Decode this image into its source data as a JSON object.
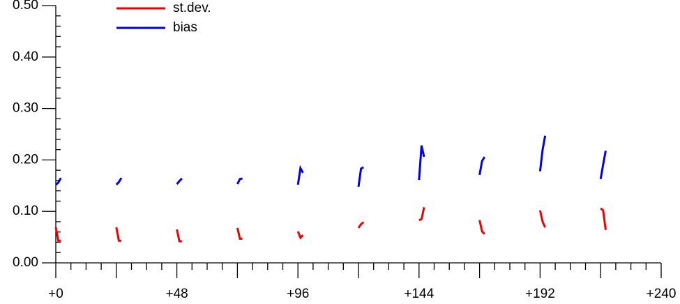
{
  "chart_data": {
    "type": "line",
    "x": [
      0,
      1,
      2,
      12,
      24,
      25,
      26,
      36,
      48,
      49,
      50,
      60,
      72,
      73,
      74,
      84,
      96,
      97,
      98,
      108,
      120,
      121,
      122,
      132,
      144,
      145,
      146,
      156,
      168,
      169,
      170,
      180,
      192,
      193,
      194,
      204,
      216,
      217,
      218
    ],
    "series": [
      {
        "name": "st.dev.",
        "color": "#ee0000",
        "values": [
          0.069,
          0.043,
          0.043,
          null,
          0.069,
          0.043,
          0.043,
          null,
          0.065,
          0.042,
          0.042,
          null,
          0.068,
          0.047,
          0.047,
          null,
          0.061,
          0.049,
          0.054,
          null,
          0.068,
          0.075,
          0.079,
          null,
          0.083,
          0.085,
          0.108,
          null,
          0.083,
          0.061,
          0.056,
          null,
          0.102,
          0.08,
          0.069,
          null,
          0.106,
          0.102,
          0.064
        ]
      },
      {
        "name": "bias",
        "color": "#0000ee",
        "values": [
          0.152,
          0.156,
          0.165,
          null,
          0.152,
          0.157,
          0.165,
          null,
          0.153,
          0.159,
          0.164,
          null,
          0.153,
          0.163,
          0.164,
          null,
          0.152,
          0.184,
          0.175,
          null,
          0.148,
          0.183,
          0.186,
          null,
          0.161,
          0.228,
          0.206,
          null,
          0.171,
          0.198,
          0.206,
          null,
          0.178,
          0.22,
          0.247,
          null,
          0.163,
          0.191,
          0.218
        ]
      }
    ],
    "xlim": [
      0,
      240
    ],
    "ylim": [
      0,
      0.5
    ],
    "xticks": [
      {
        "value": 0,
        "label": "+0"
      },
      {
        "value": 48,
        "label": "+48"
      },
      {
        "value": 96,
        "label": "+96"
      },
      {
        "value": 144,
        "label": "+144"
      },
      {
        "value": 192,
        "label": "+192"
      },
      {
        "value": 240,
        "label": "+240"
      }
    ],
    "xmidticks": [
      24,
      72,
      120,
      168,
      216
    ],
    "xminorticks": [
      6,
      12,
      18,
      30,
      36,
      42,
      54,
      60,
      66,
      78,
      84,
      90,
      102,
      108,
      114,
      126,
      132,
      138,
      150,
      156,
      162,
      174,
      180,
      186,
      198,
      204,
      210,
      222,
      228,
      234
    ],
    "yticks": [
      {
        "value": 0,
        "label": "0.00"
      },
      {
        "value": 0.1,
        "label": "0.10"
      },
      {
        "value": 0.2,
        "label": "0.20"
      },
      {
        "value": 0.3,
        "label": "0.30"
      },
      {
        "value": 0.4,
        "label": "0.40"
      },
      {
        "value": 0.5,
        "label": "0.50"
      }
    ],
    "yminorticks": [
      0.02,
      0.04,
      0.06,
      0.08,
      0.12,
      0.14,
      0.16,
      0.18,
      0.22,
      0.24,
      0.26,
      0.28,
      0.32,
      0.34,
      0.36,
      0.38,
      0.42,
      0.44,
      0.46,
      0.48
    ],
    "legend": "upper left",
    "grid": false
  }
}
